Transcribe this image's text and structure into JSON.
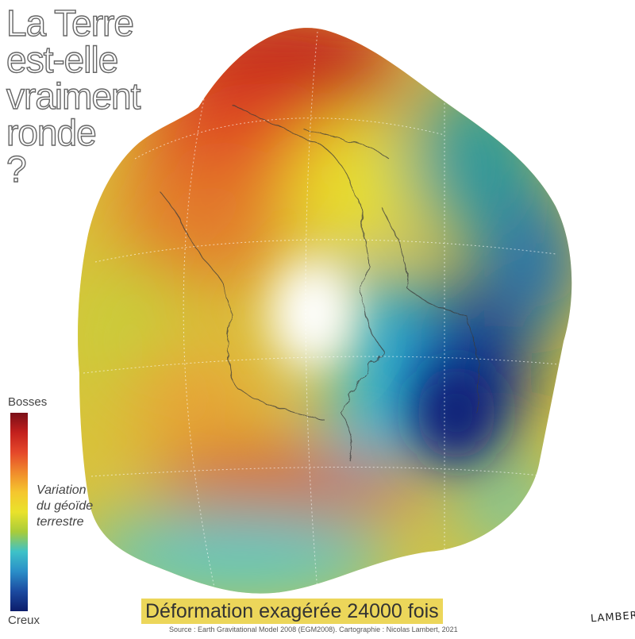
{
  "title_lines": [
    "La Terre",
    "est-elle",
    "vraiment",
    "ronde",
    "?"
  ],
  "legend": {
    "top_label": "Bosses",
    "bottom_label": "Creux",
    "title_lines": [
      "Variation",
      "du géoïde",
      "terrestre"
    ],
    "colors": [
      "#7a0f18",
      "#c3201d",
      "#e5482a",
      "#f08a2c",
      "#f5c62e",
      "#e9e22b",
      "#a8cc3a",
      "#3ec2c8",
      "#2a8ec8",
      "#1b4aa0",
      "#0c1d6b"
    ]
  },
  "subtitle": "Déformation exagérée 24000 fois",
  "source": "Source : Earth Gravitational Model 2008 (EGM2008). Cartographie : Nicolas Lambert, 2021",
  "signature": "LAMBERT"
}
